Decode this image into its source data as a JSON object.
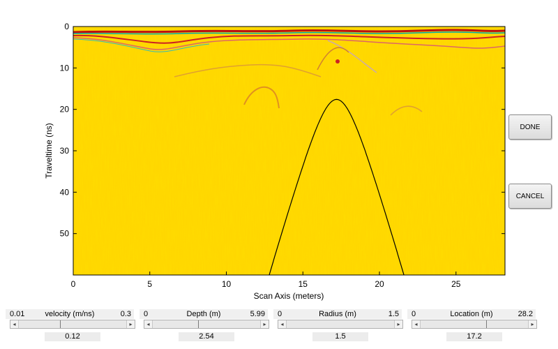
{
  "plot": {
    "xlabel": "Scan Axis (meters)",
    "ylabel": "Traveltime (ns)",
    "xticks": [
      "0",
      "5",
      "10",
      "15",
      "20",
      "25"
    ],
    "yticks": [
      "0",
      "10",
      "20",
      "30",
      "40",
      "50"
    ],
    "xlim": [
      0,
      28.2
    ],
    "ylim": [
      0,
      60
    ],
    "background_color": "#ffd700",
    "curve_color": "#000000",
    "hyperbola": {
      "apex_x": 17.2,
      "apex_t": 17.6
    }
  },
  "chart_data": {
    "type": "heatmap",
    "title": "",
    "xlabel": "Scan Axis (meters)",
    "ylabel": "Traveltime (ns)",
    "xlim": [
      0,
      28.2
    ],
    "ylim": [
      0,
      60
    ],
    "y_inverted": true,
    "overlay_curve": {
      "apex_x": 17.2,
      "apex_t": 17.6,
      "x_range": [
        12.9,
        21.6
      ]
    }
  },
  "buttons": {
    "done": "DONE",
    "cancel": "CANCEL"
  },
  "controls": [
    {
      "label": "velocity (m/ns)",
      "min": "0.01",
      "max": "0.3",
      "value": "0.12",
      "fraction": 0.38
    },
    {
      "label": "Depth (m)",
      "min": "0",
      "max": "5.99",
      "value": "2.54",
      "fraction": 0.42
    },
    {
      "label": "Radius (m)",
      "min": "0",
      "max": "1.5",
      "value": "1.5",
      "fraction": 1.0
    },
    {
      "label": "Location (m)",
      "min": "0",
      "max": "28.2",
      "value": "17.2",
      "fraction": 0.61
    }
  ]
}
